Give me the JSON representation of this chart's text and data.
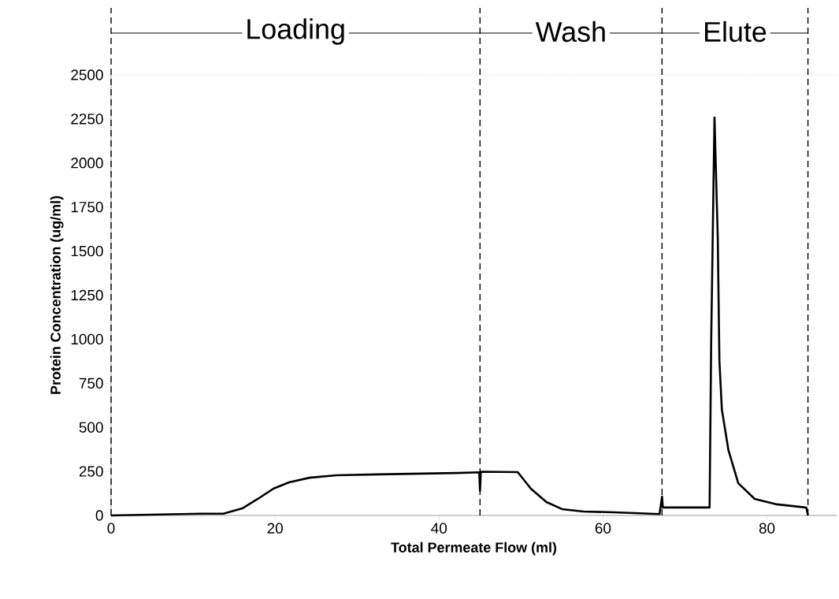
{
  "chart_data": {
    "type": "line",
    "xlabel": "Total Permeate Flow (ml)",
    "ylabel": "Protein Concentration (ug/ml)",
    "x": [
      0,
      11.25,
      13.7,
      16.0,
      17.9,
      19.8,
      21.7,
      24.2,
      27.5,
      32.6,
      42.2,
      44.9,
      45.0,
      45.1,
      49.6,
      51.2,
      53.1,
      55.0,
      57.6,
      61.4,
      66.9,
      67.2,
      67.3,
      67.4,
      73.0,
      73.2,
      73.6,
      74.0,
      74.2,
      74.5,
      75.3,
      76.5,
      78.5,
      81.2,
      84.8,
      85.0
    ],
    "series": [
      {
        "color": "#000000",
        "values": [
          0,
          10,
          10,
          40,
          94,
          152,
          188,
          214,
          228,
          233,
          241,
          245,
          140,
          248,
          246,
          152,
          76,
          36,
          22,
          18,
          8,
          107,
          45,
          45,
          45,
          1000,
          2258,
          1574,
          877,
          600,
          371,
          183,
          94,
          63,
          45,
          0
        ]
      }
    ],
    "xlim": [
      0,
      88.5
    ],
    "ylim": [
      0,
      2500
    ],
    "xticks": [
      0,
      20,
      40,
      60,
      80
    ],
    "yticks": [
      0,
      250,
      500,
      750,
      1000,
      1250,
      1500,
      1750,
      2000,
      2250,
      2500
    ],
    "grid": false,
    "marker": "none",
    "line_style": "solid",
    "ref_lines": [
      {
        "axis": "x",
        "value": 0,
        "line_style": "dashed"
      },
      {
        "axis": "x",
        "value": 45,
        "line_style": "dashed"
      },
      {
        "axis": "x",
        "value": 67.2,
        "line_style": "dashed"
      },
      {
        "axis": "x",
        "value": 85,
        "line_style": "dashed"
      }
    ],
    "annotations": [
      "Loading",
      "Wash",
      "Elute"
    ]
  }
}
